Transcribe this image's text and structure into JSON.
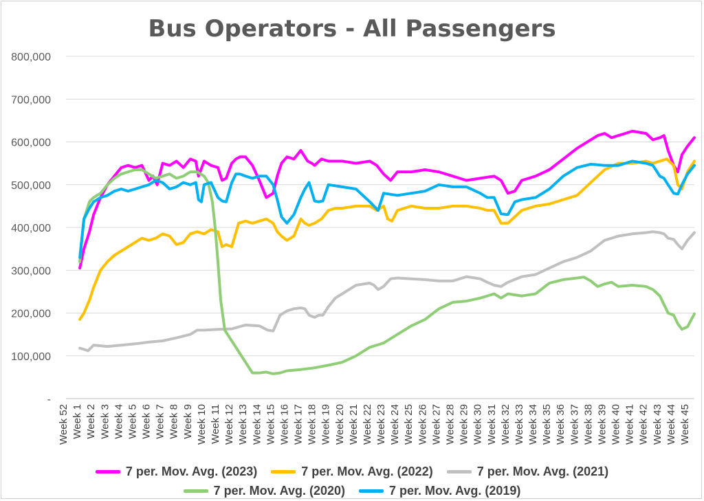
{
  "chart_data": {
    "type": "line",
    "title": "Bus Operators - All Passengers",
    "xlabel": "",
    "ylabel": "",
    "ylim": [
      0,
      800000
    ],
    "y_ticks": [
      0,
      100000,
      200000,
      300000,
      400000,
      500000,
      600000,
      700000,
      800000
    ],
    "y_tick_labels": [
      "-",
      "100,000",
      "200,000",
      "300,000",
      "400,000",
      "500,000",
      "600,000",
      "700,000",
      "800,000"
    ],
    "categories": [
      "Week 52",
      "Week 1",
      "Week 2",
      "Week 3",
      "Week 4",
      "Week 5",
      "Week 6",
      "Week 7",
      "Week 8",
      "Week 9",
      "Week 10",
      "Week 11",
      "Week 12",
      "Week 13",
      "Week 14",
      "Week 15",
      "Week 16",
      "Week 17",
      "Week 18",
      "Week 19",
      "Week 20",
      "Week 21",
      "Week 22",
      "Week 23",
      "Week 24",
      "Week 25",
      "Week 26",
      "Week 27",
      "Week 28",
      "Week 29",
      "Week 30",
      "Week 31",
      "Week 32",
      "Week 33",
      "Week 34",
      "Week 35",
      "Week 36",
      "Week 37",
      "Week 38",
      "Week 39",
      "Week 40",
      "Week 41",
      "Week 42",
      "Week 43",
      "Week 44",
      "Week 45"
    ],
    "grid": true,
    "legend_position": "bottom",
    "series": [
      {
        "name": "7 per. Mov. Avg. (2023)",
        "color": "#ff00ff",
        "x": [
          1,
          1.3,
          1.7,
          2,
          2.5,
          3,
          3.5,
          4,
          4.5,
          5,
          5.5,
          6,
          6.3,
          6.6,
          7,
          7.5,
          8,
          8.5,
          9,
          9.4,
          9.6,
          10,
          10.5,
          11,
          11.3,
          11.6,
          12,
          12.3,
          12.6,
          13,
          13.5,
          14,
          14.5,
          15,
          15.3,
          15.6,
          16,
          16.5,
          17,
          17.5,
          17.8,
          18,
          18.5,
          19,
          19.5,
          20,
          21,
          22,
          22.5,
          23,
          23.5,
          24,
          25,
          26,
          27,
          28,
          29,
          30,
          31,
          31.5,
          32,
          32.5,
          33,
          34,
          35,
          36,
          37,
          38,
          38.5,
          39,
          39.5,
          40,
          40.5,
          41,
          42,
          42.5,
          43,
          43.3,
          43.6,
          44,
          44.3,
          44.6,
          45,
          45.5
        ],
        "values": [
          305000,
          350000,
          390000,
          430000,
          470000,
          500000,
          520000,
          540000,
          545000,
          540000,
          545000,
          510000,
          520000,
          500000,
          550000,
          545000,
          555000,
          540000,
          560000,
          555000,
          520000,
          555000,
          545000,
          540000,
          510000,
          515000,
          550000,
          560000,
          565000,
          565000,
          545000,
          510000,
          470000,
          480000,
          520000,
          550000,
          565000,
          560000,
          580000,
          555000,
          550000,
          545000,
          560000,
          555000,
          555000,
          555000,
          550000,
          555000,
          545000,
          525000,
          510000,
          530000,
          530000,
          535000,
          530000,
          520000,
          510000,
          515000,
          520000,
          510000,
          480000,
          485000,
          510000,
          520000,
          535000,
          560000,
          585000,
          605000,
          615000,
          620000,
          610000,
          615000,
          620000,
          625000,
          620000,
          605000,
          610000,
          615000,
          580000,
          545000,
          530000,
          570000,
          590000,
          610000
        ]
      },
      {
        "name": "7 per. Mov. Avg. (2022)",
        "color": "#ffc000",
        "x": [
          1,
          1.3,
          1.7,
          2,
          2.5,
          3,
          3.5,
          4,
          4.5,
          5,
          5.5,
          6,
          6.5,
          7,
          7.5,
          8,
          8.5,
          9,
          9.5,
          10,
          10.5,
          11,
          11.3,
          11.6,
          12,
          12.5,
          13,
          13.5,
          14,
          14.5,
          15,
          15.3,
          15.6,
          16,
          16.5,
          17,
          17.3,
          17.6,
          18,
          18.5,
          19,
          19.5,
          20,
          21,
          22,
          22.5,
          23,
          23.3,
          23.6,
          24,
          25,
          26,
          27,
          28,
          29,
          30,
          30.5,
          31,
          31.5,
          32,
          33,
          34,
          35,
          36,
          37,
          38,
          39,
          40,
          41,
          42,
          42.5,
          43,
          43.5,
          44,
          44.3,
          44.6,
          45,
          45.5
        ],
        "values": [
          185000,
          200000,
          230000,
          260000,
          300000,
          320000,
          335000,
          345000,
          355000,
          365000,
          375000,
          370000,
          375000,
          385000,
          380000,
          360000,
          365000,
          385000,
          390000,
          385000,
          395000,
          390000,
          355000,
          360000,
          355000,
          410000,
          415000,
          410000,
          415000,
          420000,
          410000,
          390000,
          380000,
          370000,
          380000,
          420000,
          410000,
          405000,
          410000,
          420000,
          440000,
          445000,
          445000,
          450000,
          450000,
          440000,
          450000,
          420000,
          415000,
          440000,
          450000,
          445000,
          445000,
          450000,
          450000,
          445000,
          440000,
          440000,
          410000,
          410000,
          440000,
          450000,
          455000,
          465000,
          475000,
          505000,
          535000,
          550000,
          550000,
          555000,
          550000,
          555000,
          560000,
          545000,
          500000,
          490000,
          530000,
          555000
        ]
      },
      {
        "name": "7 per. Mov. Avg. (2021)",
        "color": "#c0c0c0",
        "x": [
          1,
          1.3,
          1.6,
          2,
          3,
          4,
          5,
          6,
          7,
          8,
          9,
          9.5,
          10,
          11,
          12,
          13,
          14,
          14.3,
          14.6,
          15,
          15.5,
          16,
          16.5,
          17,
          17.3,
          17.6,
          18,
          18.3,
          18.6,
          19,
          19.5,
          20,
          21,
          22,
          22.3,
          22.6,
          23,
          23.5,
          24,
          25,
          26,
          27,
          28,
          29,
          30,
          30.5,
          31,
          31.5,
          32,
          33,
          34,
          35,
          36,
          37,
          38,
          39,
          40,
          41,
          42,
          42.5,
          43,
          43.3,
          43.6,
          44,
          44.3,
          44.6,
          45,
          45.5
        ],
        "values": [
          118000,
          115000,
          112000,
          125000,
          122000,
          125000,
          128000,
          132000,
          135000,
          142000,
          150000,
          160000,
          160000,
          162000,
          163000,
          172000,
          170000,
          165000,
          160000,
          158000,
          195000,
          205000,
          210000,
          212000,
          210000,
          195000,
          190000,
          195000,
          195000,
          215000,
          235000,
          245000,
          265000,
          270000,
          265000,
          255000,
          262000,
          280000,
          282000,
          280000,
          278000,
          275000,
          275000,
          285000,
          280000,
          272000,
          265000,
          262000,
          272000,
          285000,
          290000,
          305000,
          320000,
          330000,
          345000,
          370000,
          380000,
          385000,
          388000,
          390000,
          388000,
          385000,
          375000,
          372000,
          360000,
          350000,
          370000,
          388000
        ]
      },
      {
        "name": "7 per. Mov. Avg. (2020)",
        "color": "#8fce76",
        "x": [
          1,
          1.3,
          1.7,
          2,
          2.5,
          3,
          3.5,
          4,
          4.5,
          5,
          5.5,
          6,
          6.5,
          7,
          7.5,
          8,
          8.5,
          9,
          9.5,
          10,
          10.3,
          10.6,
          10.8,
          11,
          11.2,
          11.5,
          12,
          12.5,
          13,
          13.5,
          14,
          14.5,
          15,
          15.5,
          16,
          17,
          18,
          19,
          20,
          21,
          22,
          23,
          24,
          25,
          26,
          27,
          28,
          29,
          30,
          30.5,
          31,
          31.5,
          32,
          33,
          34,
          35,
          36,
          37,
          37.5,
          38,
          38.5,
          39,
          39.5,
          40,
          41,
          42,
          42.5,
          43,
          43.3,
          43.6,
          44,
          44.3,
          44.6,
          45,
          45.5
        ],
        "values": [
          320000,
          420000,
          460000,
          470000,
          480000,
          500000,
          515000,
          525000,
          530000,
          535000,
          535000,
          525000,
          515000,
          520000,
          525000,
          515000,
          520000,
          530000,
          530000,
          520000,
          505000,
          460000,
          400000,
          320000,
          230000,
          160000,
          135000,
          110000,
          85000,
          60000,
          60000,
          62000,
          58000,
          60000,
          65000,
          68000,
          72000,
          78000,
          85000,
          100000,
          120000,
          130000,
          150000,
          170000,
          185000,
          210000,
          225000,
          228000,
          235000,
          240000,
          245000,
          235000,
          245000,
          240000,
          245000,
          270000,
          278000,
          282000,
          284000,
          275000,
          262000,
          268000,
          272000,
          262000,
          265000,
          262000,
          255000,
          240000,
          220000,
          200000,
          195000,
          175000,
          162000,
          168000,
          198000
        ]
      },
      {
        "name": "7 per. Mov. Avg. (2019)",
        "color": "#00b0f0",
        "x": [
          1,
          1.3,
          1.7,
          2,
          2.5,
          3,
          3.5,
          4,
          4.5,
          5,
          5.5,
          6,
          6.5,
          7,
          7.5,
          8,
          8.5,
          9,
          9.4,
          9.6,
          9.8,
          10,
          10.5,
          11,
          11.3,
          11.6,
          12,
          12.3,
          12.6,
          13,
          13.5,
          14,
          14.5,
          15,
          15.3,
          15.6,
          16,
          16.5,
          17,
          17.3,
          17.6,
          18,
          18.3,
          18.6,
          19,
          20,
          21,
          22,
          22.3,
          22.6,
          23,
          24,
          25,
          26,
          27,
          28,
          29,
          30,
          30.5,
          31,
          31.5,
          32,
          32.5,
          33,
          34,
          35,
          36,
          37,
          38,
          39,
          40,
          41,
          42,
          42.5,
          43,
          43.3,
          43.6,
          44,
          44.3,
          44.6,
          45,
          45.5
        ],
        "values": [
          330000,
          420000,
          445000,
          460000,
          470000,
          475000,
          485000,
          490000,
          485000,
          490000,
          495000,
          500000,
          510000,
          505000,
          490000,
          495000,
          505000,
          500000,
          505000,
          465000,
          460000,
          500000,
          505000,
          470000,
          462000,
          460000,
          505000,
          525000,
          525000,
          520000,
          515000,
          520000,
          520000,
          500000,
          465000,
          425000,
          410000,
          430000,
          470000,
          490000,
          505000,
          462000,
          460000,
          462000,
          500000,
          495000,
          490000,
          460000,
          450000,
          440000,
          480000,
          475000,
          480000,
          485000,
          500000,
          495000,
          495000,
          480000,
          470000,
          470000,
          432000,
          430000,
          460000,
          465000,
          470000,
          490000,
          520000,
          540000,
          548000,
          545000,
          545000,
          555000,
          550000,
          545000,
          520000,
          515000,
          500000,
          480000,
          478000,
          500000,
          525000,
          545000
        ]
      }
    ]
  }
}
